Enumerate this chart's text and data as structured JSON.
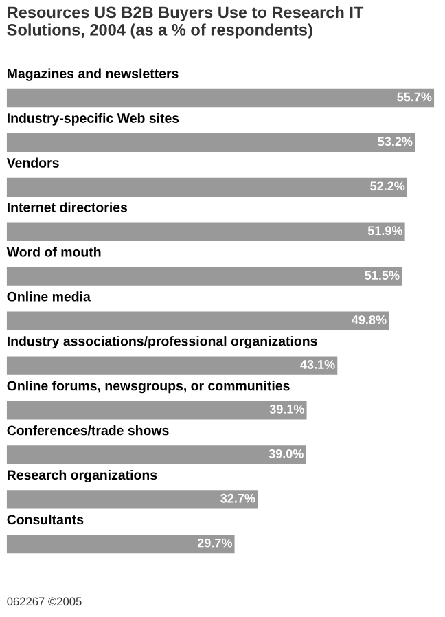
{
  "chart_data": {
    "type": "bar",
    "orientation": "horizontal",
    "title": "Resources US B2B Buyers Use to Research IT Solutions, 2004 (as a % of respondents)",
    "categories": [
      "Magazines and newsletters",
      "Industry-specific Web sites",
      "Vendors",
      "Internet directories",
      "Word of mouth",
      "Online media",
      "Industry associations/professional organizations",
      "Online forums, newsgroups, or communities",
      "Conferences/trade shows",
      "Research organizations",
      "Consultants"
    ],
    "values": [
      55.7,
      53.2,
      52.2,
      51.9,
      51.5,
      49.8,
      43.1,
      39.1,
      39.0,
      32.7,
      29.7
    ],
    "value_labels": [
      "55.7%",
      "53.2%",
      "52.2%",
      "51.9%",
      "51.5%",
      "49.8%",
      "43.1%",
      "39.1%",
      "39.0%",
      "32.7%",
      "29.7%"
    ],
    "color": "#999999",
    "annotations": [
      "062267 ©2005"
    ]
  }
}
